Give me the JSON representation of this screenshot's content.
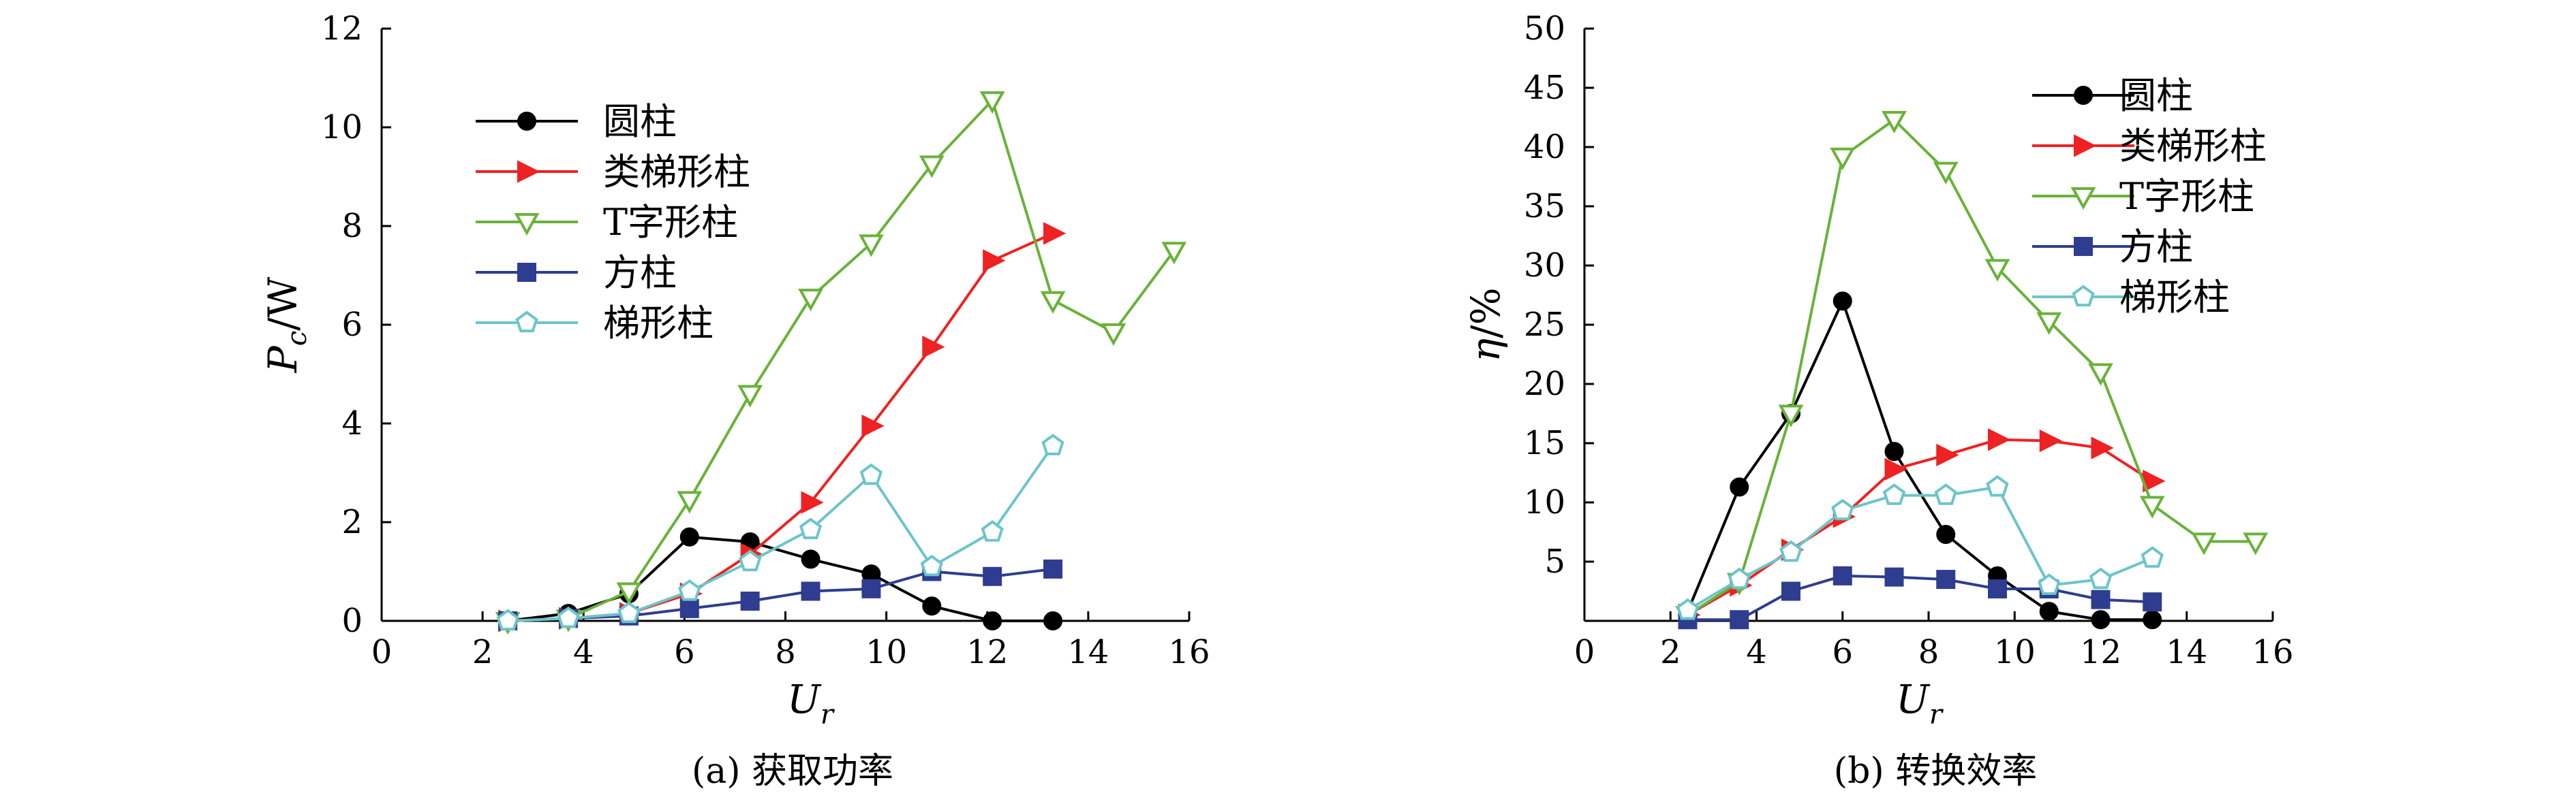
{
  "colors": {
    "圆柱": "#000000",
    "类梯形柱": "#ee2222",
    "T字形柱": "#6ab23a",
    "方柱": "#2e3d8f",
    "梯形柱": "#6cc5c9"
  },
  "chart_data": [
    {
      "type": "line",
      "caption": "(a) 获取功率",
      "xlabel": "U",
      "xlabel_sub": "r",
      "ylabel": "P",
      "ylabel_sub": "c",
      "ylabel_unit": "/W",
      "xlim": [
        0,
        16
      ],
      "ylim": [
        0,
        12
      ],
      "xticks": [
        0,
        2,
        4,
        6,
        8,
        10,
        12,
        14,
        16
      ],
      "yticks": [
        0,
        2,
        4,
        6,
        8,
        10,
        12
      ],
      "xtick_labels": [
        "0",
        "2",
        "4",
        "6",
        "8",
        "10",
        "12",
        "14",
        "16"
      ],
      "ytick_labels": [
        "0",
        "2",
        "4",
        "6",
        "8",
        "10",
        "12"
      ],
      "legend": "top-left",
      "series": [
        {
          "name": "圆柱",
          "marker": "circle",
          "x": [
            2.5,
            3.7,
            4.9,
            6.1,
            7.3,
            8.5,
            9.7,
            10.9,
            12.1,
            13.3
          ],
          "y": [
            0.0,
            0.15,
            0.55,
            1.7,
            1.6,
            1.25,
            0.95,
            0.3,
            0.0,
            0.0
          ]
        },
        {
          "name": "类梯形柱",
          "marker": "triangle-right",
          "x": [
            2.5,
            3.7,
            4.9,
            6.1,
            7.3,
            8.5,
            9.7,
            10.9,
            12.1,
            13.3
          ],
          "y": [
            0.0,
            0.05,
            0.15,
            0.55,
            1.35,
            2.4,
            3.95,
            5.55,
            7.3,
            7.85
          ]
        },
        {
          "name": "T字形柱",
          "marker": "triangle-down",
          "x": [
            2.5,
            3.7,
            4.9,
            6.1,
            7.3,
            8.5,
            9.7,
            10.9,
            12.1,
            13.3,
            14.5,
            15.7
          ],
          "y": [
            0.0,
            0.05,
            0.6,
            2.45,
            4.6,
            6.55,
            7.65,
            9.25,
            10.55,
            6.5,
            5.85,
            7.5
          ]
        },
        {
          "name": "方柱",
          "marker": "square",
          "x": [
            2.5,
            3.7,
            4.9,
            6.1,
            7.3,
            8.5,
            9.7,
            10.9,
            12.1,
            13.3
          ],
          "y": [
            0.0,
            0.05,
            0.1,
            0.25,
            0.4,
            0.6,
            0.65,
            1.0,
            0.9,
            1.05
          ]
        },
        {
          "name": "梯形柱",
          "marker": "pentagon",
          "x": [
            2.5,
            3.7,
            4.9,
            6.1,
            7.3,
            8.5,
            9.7,
            10.9,
            12.1,
            13.3
          ],
          "y": [
            0.0,
            0.05,
            0.15,
            0.6,
            1.2,
            1.85,
            2.95,
            1.1,
            1.8,
            3.55
          ]
        }
      ]
    },
    {
      "type": "line",
      "caption": "(b) 转换效率",
      "xlabel": "U",
      "xlabel_sub": "r",
      "ylabel": "η",
      "ylabel_unit": "/%",
      "xlim": [
        0,
        16
      ],
      "ylim": [
        0,
        50
      ],
      "xticks": [
        0,
        2,
        4,
        6,
        8,
        10,
        12,
        14,
        16
      ],
      "yticks": [
        5,
        10,
        15,
        20,
        25,
        30,
        35,
        40,
        45,
        50
      ],
      "xtick_labels": [
        "0",
        "2",
        "4",
        "6",
        "8",
        "10",
        "12",
        "14",
        "16"
      ],
      "ytick_labels": [
        "5",
        "10",
        "15",
        "20",
        "25",
        "30",
        "35",
        "40",
        "45",
        "50"
      ],
      "legend": "top-right",
      "series": [
        {
          "name": "圆柱",
          "marker": "circle",
          "x": [
            2.4,
            3.6,
            4.8,
            6.0,
            7.2,
            8.4,
            9.6,
            10.8,
            12.0,
            13.2
          ],
          "y": [
            0.8,
            11.3,
            17.5,
            27.0,
            14.3,
            7.3,
            3.8,
            0.8,
            0.1,
            0.1
          ]
        },
        {
          "name": "类梯形柱",
          "marker": "triangle-right",
          "x": [
            2.4,
            3.6,
            4.8,
            6.0,
            7.2,
            8.4,
            9.6,
            10.8,
            12.0,
            13.2
          ],
          "y": [
            0.5,
            3.0,
            6.0,
            8.8,
            12.8,
            14.0,
            15.3,
            15.2,
            14.6,
            11.8
          ]
        },
        {
          "name": "T字形柱",
          "marker": "triangle-down",
          "x": [
            2.4,
            3.6,
            4.8,
            6.0,
            7.2,
            8.4,
            9.6,
            10.8,
            12.0,
            13.2,
            14.4,
            15.6
          ],
          "y": [
            0.5,
            3.3,
            17.5,
            39.2,
            42.3,
            38.0,
            29.8,
            25.3,
            21.0,
            9.8,
            6.7,
            6.7
          ]
        },
        {
          "name": "方柱",
          "marker": "square",
          "x": [
            2.4,
            3.6,
            4.8,
            6.0,
            7.2,
            8.4,
            9.6,
            10.8,
            12.0,
            13.2
          ],
          "y": [
            0.1,
            0.1,
            2.5,
            3.8,
            3.7,
            3.5,
            2.7,
            2.7,
            1.8,
            1.6
          ]
        },
        {
          "name": "梯形柱",
          "marker": "pentagon",
          "x": [
            2.4,
            3.6,
            4.8,
            6.0,
            7.2,
            8.4,
            9.6,
            10.8,
            12.0,
            13.2
          ],
          "y": [
            0.9,
            3.5,
            5.8,
            9.3,
            10.6,
            10.6,
            11.3,
            3.0,
            3.5,
            5.3
          ]
        }
      ]
    }
  ]
}
